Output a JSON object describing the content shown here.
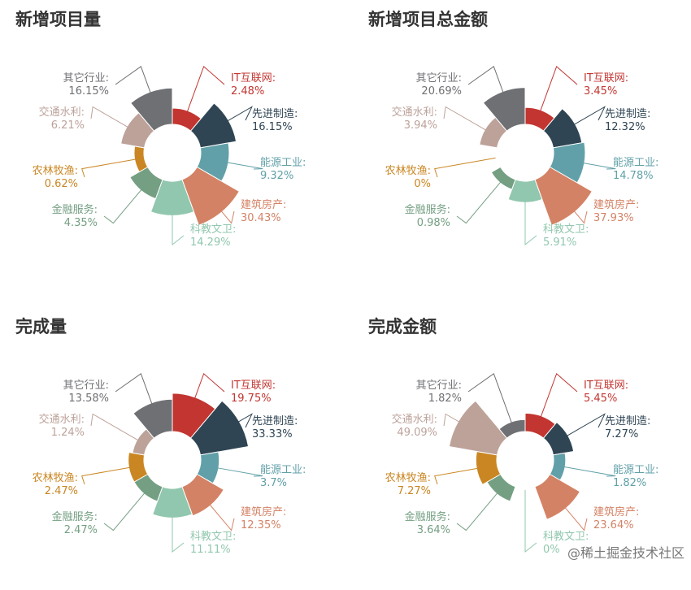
{
  "colors": {
    "it": "#c23531",
    "advanced": "#2f4554",
    "energy": "#61a0a8",
    "construction": "#d48265",
    "education": "#91c7ae",
    "finance": "#749f83",
    "agriculture": "#ca8622",
    "transport": "#bda29a",
    "other": "#6e7074"
  },
  "chart_data": [
    {
      "type": "pie",
      "title": "新增项目量",
      "categories": [
        "IT互联网",
        "先进制造",
        "能源工业",
        "建筑房产",
        "科教文卫",
        "金融服务",
        "农林牧渔",
        "交通水利",
        "其它行业"
      ],
      "values": [
        2.48,
        16.15,
        9.32,
        30.43,
        14.29,
        4.35,
        0.62,
        6.21,
        16.15
      ],
      "value_labels": [
        "2.48%",
        "16.15%",
        "9.32%",
        "30.43%",
        "14.29%",
        "4.35%",
        "0.62%",
        "6.21%",
        "16.15%"
      ]
    },
    {
      "type": "pie",
      "title": "新增项目总金额",
      "categories": [
        "IT互联网",
        "先进制造",
        "能源工业",
        "建筑房产",
        "科教文卫",
        "金融服务",
        "农林牧渔",
        "交通水利",
        "其它行业"
      ],
      "values": [
        3.45,
        12.32,
        14.78,
        37.93,
        5.91,
        0.98,
        0,
        3.94,
        20.69
      ],
      "value_labels": [
        "3.45%",
        "12.32%",
        "14.78%",
        "37.93%",
        "5.91%",
        "0.98%",
        "0%",
        "3.94%",
        "20.69%"
      ]
    },
    {
      "type": "pie",
      "title": "完成量",
      "categories": [
        "IT互联网",
        "先进制造",
        "能源工业",
        "建筑房产",
        "科教文卫",
        "金融服务",
        "农林牧渔",
        "交通水利",
        "其它行业"
      ],
      "values": [
        19.75,
        33.33,
        3.7,
        12.35,
        11.11,
        2.47,
        2.47,
        1.24,
        13.58
      ],
      "value_labels": [
        "19.75%",
        "33.33%",
        "3.7%",
        "12.35%",
        "11.11%",
        "2.47%",
        "2.47%",
        "1.24%",
        "13.58%"
      ]
    },
    {
      "type": "pie",
      "title": "完成金额",
      "categories": [
        "IT互联网",
        "先进制造",
        "能源工业",
        "建筑房产",
        "科教文卫",
        "金融服务",
        "农林牧渔",
        "交通水利",
        "其它行业"
      ],
      "values": [
        5.45,
        7.27,
        1.82,
        23.64,
        0,
        3.64,
        7.27,
        49.09,
        1.82
      ],
      "value_labels": [
        "5.45%",
        "7.27%",
        "1.82%",
        "23.64%",
        "0%",
        "3.64%",
        "7.27%",
        "49.09%",
        "1.82%"
      ]
    }
  ],
  "watermark": "@稀土掘金技术社区"
}
